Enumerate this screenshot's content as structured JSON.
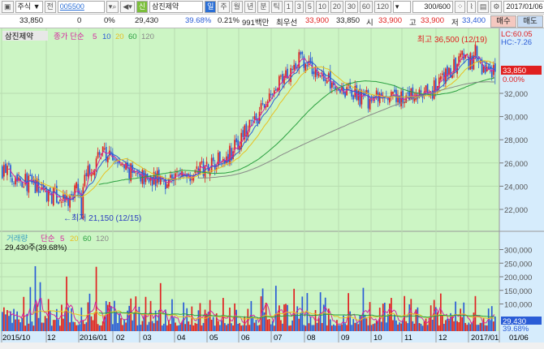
{
  "toolbar": {
    "market": "주식",
    "market_arrow": "▼",
    "prev": "전",
    "code": "005500",
    "search_icon": "search",
    "sound_icon": "speaker",
    "new_badge": "신",
    "name": "삼진제약",
    "periods": [
      "일",
      "주",
      "월",
      "년",
      "분",
      "틱"
    ],
    "active_period": "일",
    "intervals": [
      "1",
      "3",
      "5",
      "10",
      "20",
      "30",
      "60",
      "120"
    ],
    "count": "300",
    "count_total": "/600",
    "date": "2017/01/06"
  },
  "quote": {
    "price": "33,850",
    "change": "0",
    "change_rate": "0%",
    "volume": "29,430",
    "volume_rate": "39.68%",
    "turnover_rate": "0.21%",
    "amount": "991백만",
    "best_label": "최우선",
    "best_ask": "33,900",
    "best_bid": "33,850",
    "open_label": "시",
    "open": "33,900",
    "high_label": "고",
    "high": "33,900",
    "low_label": "저",
    "low": "33,400",
    "buy": "매수",
    "sell": "매도"
  },
  "price_pane": {
    "title": "삼진제약",
    "ma_label": "종가 단순",
    "ma": [
      "5",
      "10",
      "20",
      "60",
      "120"
    ],
    "ma_colors": [
      "#d6249f",
      "#2a5cd6",
      "#e8c020",
      "#2aa040",
      "#888888"
    ],
    "lc": "LC:60.05",
    "hc": "HC:-7.26",
    "current": "33,850",
    "current_rate": "0.00%",
    "y_ticks": [
      "22,000",
      "24,000",
      "26,000",
      "28,000",
      "30,000",
      "32,000"
    ],
    "high_annotation": "최고 36,500 (12/19)",
    "low_annotation": "←최저 21,150 (12/15)"
  },
  "volume_pane": {
    "title": "거래량",
    "ma_label": "단순",
    "ma": [
      "5",
      "20",
      "60",
      "120"
    ],
    "info": "29,430주(39.68%)",
    "y_ticks": [
      "300,000",
      "250,000",
      "200,000",
      "150,000",
      "100,000"
    ],
    "current": "29,430",
    "current_rate": "39.68%"
  },
  "x_ticks": [
    "2015/10",
    "12",
    "2016/01",
    "02",
    "03",
    "04",
    "05",
    "06",
    "07",
    "08",
    "09",
    "10",
    "11",
    "12",
    "2017/01",
    "01/06"
  ],
  "chart_data": {
    "type": "candlestick",
    "approx_monthly_close": {
      "2015/10": 25500,
      "2015/11": 24000,
      "2015/12": 22500,
      "2016/01": 27000,
      "2016/02": 25000,
      "2016/03": 24500,
      "2016/04": 25500,
      "2016/05": 27000,
      "2016/06": 31000,
      "2016/07": 35000,
      "2016/08": 33000,
      "2016/09": 31500,
      "2016/10": 31500,
      "2016/11": 32000,
      "2016/12": 35000,
      "2017/01": 33850
    },
    "high": 36500,
    "low": 21150,
    "up_color": "#e02020",
    "down_color": "#2a5cd6"
  }
}
